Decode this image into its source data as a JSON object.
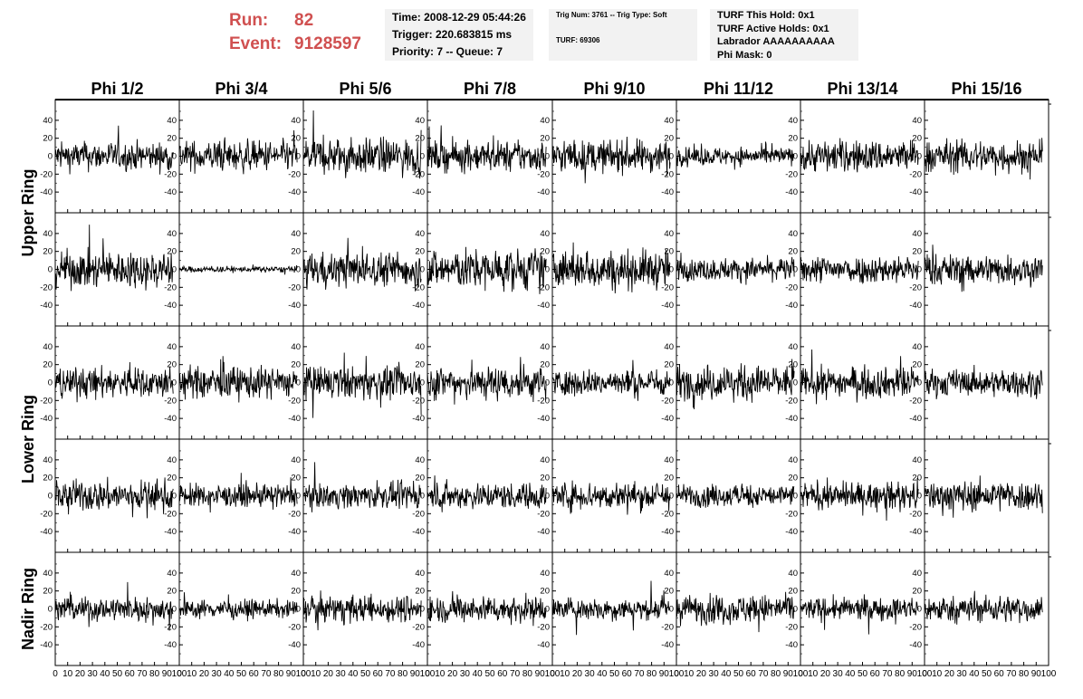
{
  "header": {
    "run_label": "Run:",
    "run_value": "82",
    "event_label": "Event:",
    "event_value": "9128597",
    "time": "Time: 2008-12-29 05:44:26",
    "trigger": "Trigger: 220.683815 ms",
    "priority": "Priority: 7 -- Queue: 7",
    "trig_num": "Trig Num: 3761 -- Trig Type: Soft",
    "turf": "TURF: 69306",
    "turf_hold": "TURF This Hold: 0x1",
    "turf_active": "TURF Active Holds: 0x1",
    "labrador": "Labrador AAAAAAAAAA",
    "phi_mask": "Phi Mask: 0"
  },
  "chart_data": {
    "type": "line",
    "columns": [
      "Phi 1/2",
      "Phi 3/4",
      "Phi 5/6",
      "Phi 7/8",
      "Phi 9/10",
      "Phi 11/12",
      "Phi 13/14",
      "Phi 15/16"
    ],
    "rows": [
      "Upper Ring",
      "Upper Ring",
      "Lower Ring",
      "Lower Ring",
      "Nadir Ring"
    ],
    "row_labels": [
      {
        "label": "Upper Ring",
        "rows": [
          0,
          1
        ]
      },
      {
        "label": "Lower Ring",
        "rows": [
          2,
          3
        ]
      },
      {
        "label": "Nadir Ring",
        "rows": [
          4,
          4
        ]
      }
    ],
    "xlim": [
      0,
      100
    ],
    "ylim": [
      -55,
      55
    ],
    "yticks": [
      -40,
      -20,
      0,
      20,
      40
    ],
    "xticks": [
      0,
      10,
      20,
      30,
      40,
      50,
      60,
      70,
      80,
      90,
      100
    ],
    "xtick_labels": [
      "0",
      "10",
      "20",
      "30",
      "40",
      "50",
      "60",
      "70",
      "80",
      "90",
      "100"
    ],
    "ytick_labels": [
      "-40",
      "-20",
      "0",
      "20",
      "40"
    ],
    "samples_per_trace": 260,
    "trace_end": 95,
    "amplitudes": [
      [
        14,
        15,
        18,
        15,
        16,
        9,
        16,
        16
      ],
      [
        18,
        3,
        17,
        20,
        19,
        11,
        14,
        15
      ],
      [
        15,
        16,
        16,
        17,
        13,
        17,
        15,
        13
      ],
      [
        15,
        11,
        12,
        13,
        14,
        11,
        13,
        15
      ],
      [
        12,
        9,
        13,
        13,
        11,
        14,
        11,
        13
      ]
    ],
    "line_color": "#000000",
    "grid": false
  }
}
